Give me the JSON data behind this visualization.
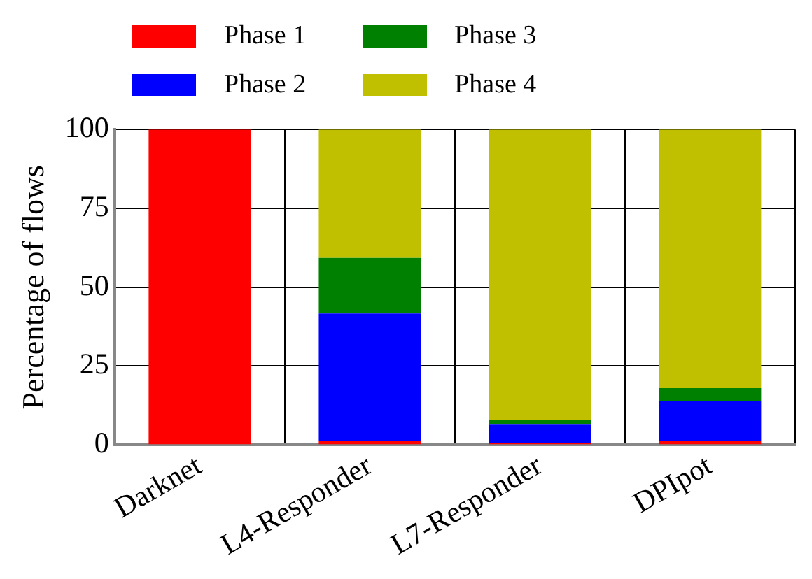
{
  "chart_data": {
    "type": "bar",
    "stacked": true,
    "ylabel": "Percentage of flows",
    "categories": [
      "Darknet",
      "L4-Responder",
      "L7-Responder",
      "DPIpot"
    ],
    "series": [
      {
        "name": "Phase 1",
        "color": "#ff0000",
        "values": [
          100,
          1.3,
          0.6,
          1.4
        ]
      },
      {
        "name": "Phase 2",
        "color": "#0000ff",
        "values": [
          0,
          40.4,
          5.8,
          12.6
        ]
      },
      {
        "name": "Phase 3",
        "color": "#008000",
        "values": [
          0,
          17.6,
          1.4,
          4.0
        ]
      },
      {
        "name": "Phase 4",
        "color": "#c0c000",
        "values": [
          0,
          40.7,
          92.2,
          82.0
        ]
      }
    ],
    "ylim": [
      0,
      100
    ],
    "yticks": [
      0,
      25,
      50,
      75,
      100
    ],
    "grid": true,
    "legend": "top"
  }
}
